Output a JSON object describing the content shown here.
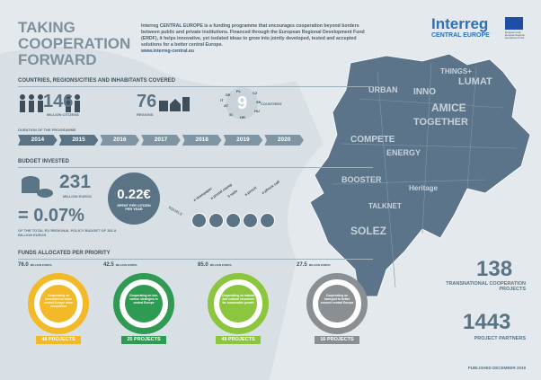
{
  "header": {
    "title_lines": [
      "TAKING",
      "COOPERATION",
      "FORWARD"
    ],
    "intro": "Interreg CENTRAL EUROPE is a funding programme that encourages cooperation beyond borders between public and private institutions. Financed through the European Regional Development Fund (ERDF), it helps innovative, yet isolated ideas to grow into jointly developed, tested and accepted solutions for a better central Europe.",
    "url": "www.interreg-central.eu",
    "logo": {
      "name": "Interreg",
      "sub": "CENTRAL EUROPE",
      "eu": "European Union European Regional Development Fund"
    }
  },
  "coverage": {
    "heading": "COUNTRIES, REGIONS/CITIES AND INHABITANTS COVERED",
    "citizens": {
      "value": "146",
      "label": "MILLION CITIZENS"
    },
    "regions": {
      "value": "76",
      "label": "REGIONS"
    },
    "countries": {
      "value": "9",
      "label": "COUNTRIES",
      "codes": [
        "PL",
        "DE",
        "CZ",
        "SK",
        "AT",
        "HU",
        "SI",
        "HR",
        "IT"
      ]
    }
  },
  "duration": {
    "heading": "DURATION OF THE PROGRAMME",
    "years": [
      "2014",
      "2015",
      "2016",
      "2017",
      "2018",
      "2019",
      "2020"
    ]
  },
  "budget": {
    "heading": "BUDGET INVESTED",
    "amount": "231",
    "amount_label": "MILLION EUROS",
    "share": "= 0.07%",
    "share_label": "OF THE TOTAL EU REGIONAL POLICY BUDGET OF 351.8 BILLION EUROS",
    "per_citizen": "0.22€",
    "per_citizen_label": "SPENT PER CITIZEN PER YEAR",
    "equals": "EQUALS",
    "equivalents": [
      "a newspaper",
      "a postal stamp",
      "3 nails",
      "a pencil",
      "a phone call"
    ]
  },
  "funds": {
    "heading": "FUNDS ALLOCATED PER PRIORITY",
    "unit": "MILLION EUROS",
    "priorities": [
      {
        "amount": "76.0",
        "label": "Cooperating on innovation to make central Europe more competitive",
        "projects": "48 PROJECTS"
      },
      {
        "amount": "42.5",
        "label": "Cooperating on low-carbon strategies in central Europe",
        "projects": "25 PROJECTS"
      },
      {
        "amount": "85.0",
        "label": "Cooperating on natural and cultural resources for sustainable growth",
        "projects": "49 PROJECTS"
      },
      {
        "amount": "27.5",
        "label": "Cooperating on transport to better connect central Europe",
        "projects": "16 PROJECTS"
      }
    ]
  },
  "totals": {
    "projects": "138",
    "projects_label": "TRANSNATIONAL COOPERATION PROJECTS",
    "partners": "1443",
    "partners_label": "PROJECT PARTNERS"
  },
  "map_words": [
    "THINGS+",
    "LUMAT",
    "URBAN",
    "INNO",
    "AMICE",
    "TOGETHER",
    "COMPETE",
    "ENERGY",
    "SOLEZ",
    "Heritage",
    "TALKNET",
    "BOOSTER"
  ],
  "footer": "PUBLISHED DECEMBER 2019"
}
